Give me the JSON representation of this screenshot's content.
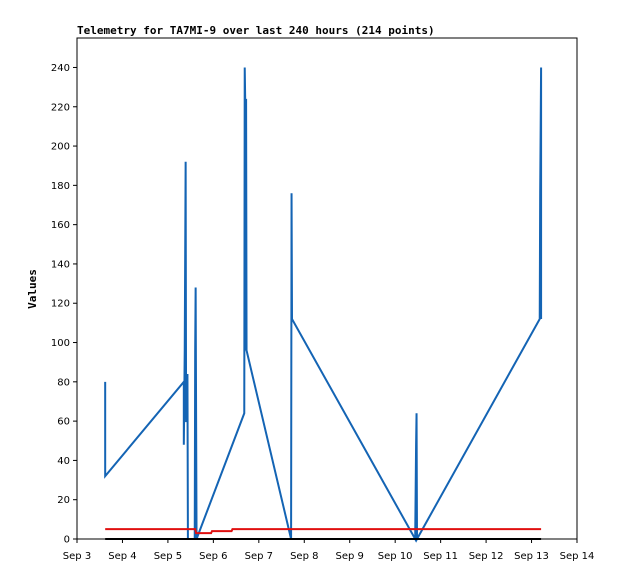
{
  "chart_data": {
    "type": "line",
    "title": "Telemetry for TA7MI-9 over last 240 hours (214 points)",
    "xlabel": "",
    "ylabel": "Values",
    "x_ticks": [
      "Sep 3",
      "Sep 4",
      "Sep 5",
      "Sep 6",
      "Sep 7",
      "Sep 8",
      "Sep 9",
      "Sep 10",
      "Sep 11",
      "Sep 12",
      "Sep 13",
      "Sep 14"
    ],
    "xlim": [
      3,
      14
    ],
    "ylim": [
      0,
      255
    ],
    "y_ticks": [
      0,
      20,
      40,
      60,
      80,
      100,
      120,
      140,
      160,
      180,
      200,
      220,
      240
    ],
    "grid": false,
    "legend": "none",
    "series": [
      {
        "color": "#1464b4",
        "points": [
          [
            3.62,
            32
          ],
          [
            3.62,
            80
          ],
          [
            3.62,
            32
          ],
          [
            5.35,
            80
          ],
          [
            5.35,
            48
          ],
          [
            5.37,
            96
          ],
          [
            5.39,
            192
          ],
          [
            5.4,
            60
          ],
          [
            5.41,
            60
          ],
          [
            5.43,
            84
          ],
          [
            5.44,
            0
          ],
          [
            5.59,
            0
          ],
          [
            5.6,
            96
          ],
          [
            5.61,
            128
          ],
          [
            5.62,
            64
          ],
          [
            5.63,
            0
          ],
          [
            6.68,
            64
          ],
          [
            6.69,
            240
          ],
          [
            6.7,
            224
          ],
          [
            6.71,
            96
          ],
          [
            6.72,
            224
          ],
          [
            6.73,
            96
          ],
          [
            7.71,
            0
          ],
          [
            7.72,
            176
          ],
          [
            7.73,
            112
          ],
          [
            10.44,
            0
          ],
          [
            10.45,
            24
          ],
          [
            10.46,
            48
          ],
          [
            10.47,
            64
          ],
          [
            10.48,
            0
          ],
          [
            13.18,
            112
          ],
          [
            13.19,
            176
          ],
          [
            13.2,
            208
          ],
          [
            13.21,
            240
          ],
          [
            13.21,
            112
          ]
        ]
      },
      {
        "color": "#e01010",
        "points": [
          [
            3.62,
            5
          ],
          [
            5.6,
            5
          ],
          [
            5.62,
            3
          ],
          [
            5.95,
            3
          ],
          [
            5.97,
            4
          ],
          [
            6.4,
            4
          ],
          [
            6.42,
            5
          ],
          [
            6.72,
            5
          ],
          [
            7.71,
            5
          ],
          [
            13.21,
            5
          ]
        ]
      },
      {
        "color": "#000000",
        "points": [
          [
            3.62,
            0
          ],
          [
            13.21,
            0
          ]
        ]
      }
    ]
  }
}
